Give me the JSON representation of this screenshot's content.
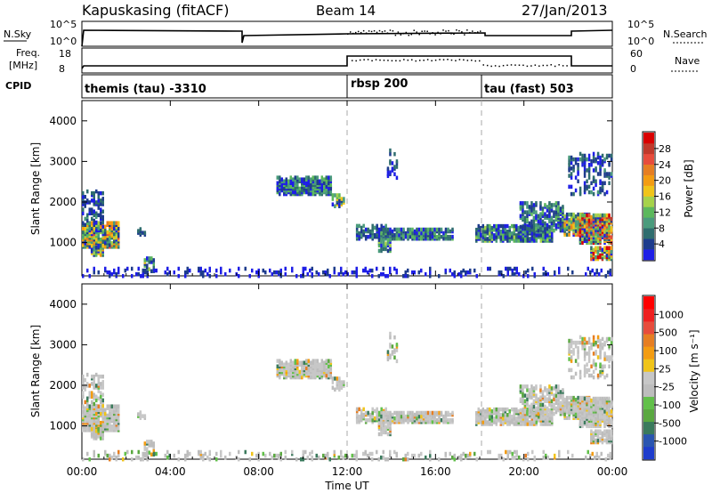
{
  "header": {
    "station": "Kapuskasing (fitACF)",
    "beam": "Beam 14",
    "date": "27/Jan/2013"
  },
  "chart_data": [
    {
      "type": "line",
      "name": "noise-panel",
      "left_label": "N.Sky",
      "right_label": "N.Search",
      "left_ticks": [
        "10^5",
        "10^0"
      ],
      "right_ticks": [
        "10^5",
        "10^0"
      ],
      "segments": [
        {
          "x": [
            "00:00",
            "00:10",
            "07:20"
          ],
          "y_level": "high"
        },
        {
          "x": [
            "07:20",
            "12:00",
            "18:00",
            "22:00",
            "24:00"
          ],
          "y_level": [
            "mid",
            "mid-high",
            "mid",
            "high"
          ]
        }
      ]
    },
    {
      "type": "line",
      "name": "frequency-panel",
      "left_label": "Freq.",
      "left_unit": "[MHz]",
      "right_label": "Nave",
      "left_ticks": [
        "18",
        "8"
      ],
      "right_ticks": [
        "60",
        "0"
      ],
      "freq_steps": [
        {
          "from": "00:10",
          "to": "12:00",
          "level": "low"
        },
        {
          "from": "12:00",
          "to": "22:00",
          "level": "high"
        },
        {
          "from": "22:00",
          "to": "24:00",
          "level": "low"
        }
      ]
    },
    {
      "type": "table",
      "name": "cpid-bar",
      "label": "CPID",
      "programs": [
        {
          "label": "themis (tau) -3310",
          "start": "00:00"
        },
        {
          "label": "rbsp 200",
          "start": "12:00"
        },
        {
          "label": "tau (fast) 503",
          "start": "18:00"
        }
      ]
    },
    {
      "type": "heatmap",
      "name": "power",
      "ylabel": "Slant Range [km]",
      "y_ticks": [
        1000,
        2000,
        3000,
        4000
      ],
      "ylim": [
        180,
        4500
      ],
      "colorbar_label": "Power [dB]",
      "colorbar_ticks": [
        "28",
        "24",
        "20",
        "16",
        "12",
        "8",
        "4"
      ],
      "colorbar_colors": [
        "#1e1ee6",
        "#1e3c8c",
        "#2f6d6e",
        "#4a9b7c",
        "#5cb85c",
        "#a6d24a",
        "#f0c419",
        "#f39c12",
        "#e67e22",
        "#e74c3c",
        "#c0392b",
        "#d90000"
      ]
    },
    {
      "type": "heatmap",
      "name": "velocity",
      "ylabel": "Slant Range [km]",
      "y_ticks": [
        1000,
        2000,
        3000,
        4000
      ],
      "ylim": [
        180,
        4500
      ],
      "colorbar_label": "Velocity [m s⁻¹]",
      "colorbar_ticks": [
        "1000",
        "500",
        "100",
        "25",
        "-25",
        "-100",
        "-500",
        "-1000"
      ],
      "colorbar_colors": [
        "#1e3ccc",
        "#2a55b0",
        "#3a7a5c",
        "#5aa840",
        "#62c04a",
        "#bdbdbd",
        "#c7c7c7",
        "#f0c419",
        "#f39c12",
        "#e67e22",
        "#e74c3c",
        "#ee2020",
        "#ff0000"
      ]
    }
  ],
  "xaxis": {
    "label": "Time UT",
    "ticks": [
      "00:00",
      "04:00",
      "08:00",
      "12:00",
      "16:00",
      "20:00",
      "00:00"
    ]
  }
}
